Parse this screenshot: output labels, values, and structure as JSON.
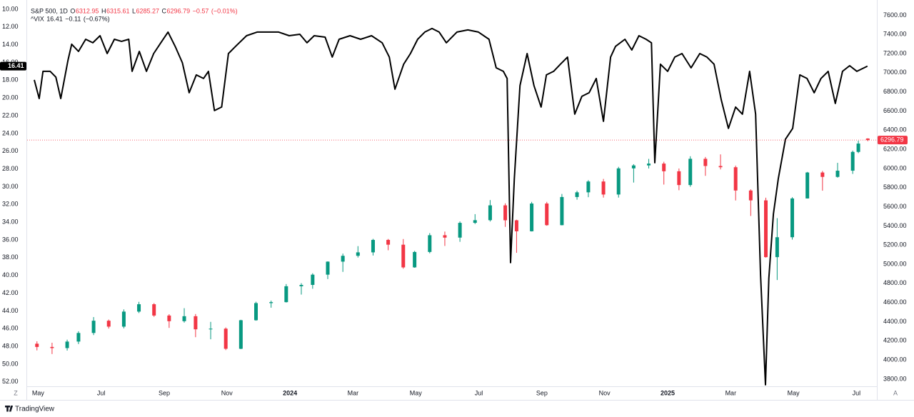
{
  "chart_data": {
    "type": "combo",
    "xlim": [
      2023.304,
      2025.554
    ],
    "xticks": [
      {
        "value": 2023.333,
        "label": "May"
      },
      {
        "value": 2023.5,
        "label": "Jul"
      },
      {
        "value": 2023.667,
        "label": "Sep"
      },
      {
        "value": 2023.833,
        "label": "Nov"
      },
      2024,
      {
        "value": 2024.167,
        "label": "Mar"
      },
      {
        "value": 2024.333,
        "label": "May"
      },
      {
        "value": 2024.5,
        "label": "Jul"
      },
      {
        "value": 2024.667,
        "label": "Sep"
      },
      {
        "value": 2024.833,
        "label": "Nov"
      },
      2025,
      {
        "value": 2025.167,
        "label": "Mar"
      },
      {
        "value": 2025.333,
        "label": "May"
      },
      {
        "value": 2025.5,
        "label": "Jul"
      }
    ],
    "ylim": [
      9.6,
      52.5
    ],
    "y_inverted": true,
    "yticks": [
      {
        "value": 10,
        "label": "10.00"
      },
      {
        "value": 12,
        "label": "12.00"
      },
      {
        "value": 14,
        "label": "14.00"
      },
      {
        "value": 16,
        "label": "16.00"
      },
      {
        "value": 18,
        "label": "18.00"
      },
      {
        "value": 20,
        "label": "20.00"
      },
      {
        "value": 22,
        "label": "22.00"
      },
      {
        "value": 24,
        "label": "24.00"
      },
      {
        "value": 26,
        "label": "26.00"
      },
      {
        "value": 28,
        "label": "28.00"
      },
      {
        "value": 30,
        "label": "30.00"
      },
      {
        "value": 32,
        "label": "32.00"
      },
      {
        "value": 34,
        "label": "34.00"
      },
      {
        "value": 36,
        "label": "36.00"
      },
      {
        "value": 38,
        "label": "38.00"
      },
      {
        "value": 40,
        "label": "40.00"
      },
      {
        "value": 42,
        "label": "42.00"
      },
      {
        "value": 44,
        "label": "44.00"
      },
      {
        "value": 46,
        "label": "46.00"
      },
      {
        "value": 48,
        "label": "48.00"
      },
      {
        "value": 50,
        "label": "50.00"
      },
      {
        "value": 52,
        "label": "52.00"
      }
    ],
    "y2lim": [
      3725,
      7700
    ],
    "y2ticks": [
      {
        "value": 3800,
        "label": "3800.00"
      },
      {
        "value": 4000,
        "label": "4000.00"
      },
      {
        "value": 4200,
        "label": "4200.00"
      },
      {
        "value": 4400,
        "label": "4400.00"
      },
      {
        "value": 4600,
        "label": "4600.00"
      },
      {
        "value": 4800,
        "label": "4800.00"
      },
      {
        "value": 5000,
        "label": "5000.00"
      },
      {
        "value": 5200,
        "label": "5200.00"
      },
      {
        "value": 5400,
        "label": "5400.00"
      },
      {
        "value": 5600,
        "label": "5600.00"
      },
      {
        "value": 5800,
        "label": "5800.00"
      },
      {
        "value": 6000,
        "label": "6000.00"
      },
      {
        "value": 6200,
        "label": "6200.00"
      },
      {
        "value": 6400,
        "label": "6400.00"
      },
      {
        "value": 6600,
        "label": "6600.00"
      },
      {
        "value": 6800,
        "label": "6800.00"
      },
      {
        "value": 7000,
        "label": "7000.00"
      },
      {
        "value": 7200,
        "label": "7200.00"
      },
      {
        "value": 7400,
        "label": "7400.00"
      },
      {
        "value": 7600,
        "label": "7600.00"
      }
    ],
    "grid": false,
    "series": [
      {
        "name": "S&P 500, 1D",
        "type": "candlestick",
        "axis": "y2",
        "up_color": "#089981",
        "down_color": "#f23645",
        "ohlc_labels": [
          "O",
          "H",
          "L",
          "C"
        ],
        "change": {
          "value": -0.57,
          "label": "−0.57"
        },
        "change_pct": {
          "value": -0.01,
          "label": "(−0.01%)"
        },
        "x": [
          2023.33,
          2023.37,
          2023.41,
          2023.44,
          2023.48,
          2023.52,
          2023.56,
          2023.6,
          2023.64,
          2023.68,
          2023.72,
          2023.75,
          2023.79,
          2023.83,
          2023.87,
          2023.91,
          2023.95,
          2023.99,
          2024.03,
          2024.06,
          2024.1,
          2024.14,
          2024.18,
          2024.22,
          2024.26,
          2024.3,
          2024.33,
          2024.37,
          2024.41,
          2024.45,
          2024.49,
          2024.53,
          2024.57,
          2024.6,
          2024.64,
          2024.68,
          2024.72,
          2024.76,
          2024.79,
          2024.83,
          2024.87,
          2024.91,
          2024.95,
          2024.99,
          2025.03,
          2025.06,
          2025.1,
          2025.14,
          2025.18,
          2025.22,
          2025.26,
          2025.29,
          2025.33,
          2025.37,
          2025.41,
          2025.45,
          2025.49,
          2025.505,
          2025.53
        ],
        "open": [
          4170,
          4136,
          4124,
          4192,
          4282,
          4410,
          4348,
          4505,
          4582,
          4464,
          4405,
          4457,
          4320,
          4327,
          4117,
          4415,
          4594,
          4604,
          4770,
          4784,
          4891,
          5027,
          5088,
          5124,
          5254,
          5204,
          4967,
          5128,
          5303,
          5278,
          5432,
          5460,
          5615,
          5459,
          5344,
          5634,
          5408,
          5702,
          5751,
          5864,
          5728,
          6001,
          6032,
          6051,
          5971,
          5827,
          6101,
          6026,
          6013,
          5770,
          5667,
          5074,
          5282,
          5687,
          5958,
          5912,
          5977,
          6173,
          6312.95
        ],
        "high": [
          4195,
          4180,
          4212,
          4300,
          4448,
          4422,
          4528,
          4607,
          4594,
          4478,
          4541,
          4480,
          4398,
          4340,
          4420,
          4608,
          4620,
          4793,
          4802,
          4906,
          5030,
          5111,
          5189,
          5265,
          5264,
          5263,
          5139,
          5325,
          5341,
          5447,
          5523,
          5670,
          5636,
          5465,
          5651,
          5651,
          5734,
          5767,
          5878,
          5891,
          6017,
          6045,
          6100,
          6070,
          6000,
          6128,
          6120,
          6147,
          6030,
          5782,
          5695,
          5481,
          5700,
          5964,
          5974,
          6059,
          6187,
          6290,
          6315.61
        ],
        "low": [
          4100,
          4062,
          4098,
          4166,
          4260,
          4328,
          4330,
          4490,
          4450,
          4335,
          4390,
          4238,
          4216,
          4103,
          4113,
          4410,
          4546,
          4600,
          4683,
          4744,
          4845,
          4920,
          5070,
          5091,
          5146,
          4953,
          4963,
          5114,
          5191,
          5234,
          5420,
          5446,
          5390,
          5119,
          5342,
          5402,
          5406,
          5674,
          5700,
          5696,
          5696,
          5853,
          6000,
          5832,
          5773,
          5809,
          5923,
          5990,
          5666,
          5504,
          5069,
          4835,
          5257,
          5686,
          5768,
          5904,
          5943,
          6160,
          6285.27
        ],
        "close": [
          4136,
          4124,
          4192,
          4282,
          4410,
          4348,
          4505,
          4582,
          4464,
          4405,
          4457,
          4320,
          4327,
          4117,
          4415,
          4594,
          4604,
          4770,
          4784,
          4891,
          5027,
          5088,
          5124,
          5254,
          5204,
          4967,
          5128,
          5303,
          5278,
          5432,
          5460,
          5615,
          5459,
          5344,
          5634,
          5408,
          5702,
          5751,
          5864,
          5728,
          6001,
          6032,
          6051,
          5971,
          5827,
          6101,
          6026,
          6013,
          5770,
          5667,
          5074,
          5282,
          5687,
          5958,
          5912,
          5977,
          6173,
          6260,
          6296.79
        ]
      },
      {
        "name": "^VIX",
        "type": "line",
        "axis": "y",
        "color": "#000000",
        "change": {
          "value": -0.11,
          "label": "−0.11"
        },
        "change_pct": {
          "value": -0.67,
          "label": "(−0.67%)"
        },
        "x": [
          2023.323,
          2023.336,
          2023.346,
          2023.365,
          2023.38,
          2023.393,
          2023.412,
          2023.422,
          2023.44,
          2023.459,
          2023.478,
          2023.497,
          2023.516,
          2023.535,
          2023.554,
          2023.573,
          2023.582,
          2023.601,
          2023.62,
          2023.639,
          2023.658,
          2023.677,
          2023.696,
          2023.715,
          2023.733,
          2023.752,
          2023.771,
          2023.784,
          2023.8,
          2023.819,
          2023.837,
          2023.856,
          2023.885,
          2023.913,
          2023.941,
          2023.97,
          2023.998,
          2024.026,
          2024.045,
          2024.064,
          2024.093,
          2024.112,
          2024.13,
          2024.159,
          2024.187,
          2024.216,
          2024.244,
          2024.263,
          2024.278,
          2024.301,
          2024.319,
          2024.338,
          2024.357,
          2024.376,
          2024.395,
          2024.414,
          2024.442,
          2024.471,
          2024.499,
          2024.527,
          2024.546,
          2024.565,
          2024.575,
          2024.584,
          2024.594,
          2024.609,
          2024.628,
          2024.646,
          2024.665,
          2024.679,
          2024.698,
          2024.716,
          2024.735,
          2024.754,
          2024.773,
          2024.792,
          2024.811,
          2024.83,
          2024.849,
          2024.862,
          2024.887,
          2024.905,
          2024.924,
          2024.943,
          2024.957,
          2024.966,
          2024.981,
          2025.0,
          2025.019,
          2025.038,
          2025.062,
          2025.085,
          2025.104,
          2025.123,
          2025.142,
          2025.161,
          2025.18,
          2025.198,
          2025.217,
          2025.233,
          2025.246,
          2025.259,
          2025.268,
          2025.28,
          2025.293,
          2025.312,
          2025.331,
          2025.35,
          2025.369,
          2025.388,
          2025.406,
          2025.425,
          2025.444,
          2025.463,
          2025.482,
          2025.501,
          2025.52,
          2025.529
        ],
        "values": [
          17.96,
          20.06,
          17.0,
          17.0,
          17.64,
          20.06,
          15.79,
          13.94,
          14.75,
          13.38,
          13.78,
          12.98,
          14.99,
          13.38,
          13.62,
          13.38,
          17.0,
          14.75,
          17.0,
          14.99,
          13.78,
          12.57,
          14.18,
          16.03,
          19.41,
          17.4,
          17.8,
          17.0,
          21.42,
          21.02,
          14.99,
          14.18,
          12.98,
          12.57,
          12.57,
          12.57,
          12.98,
          12.82,
          13.78,
          12.98,
          13.14,
          15.39,
          13.38,
          12.98,
          13.38,
          12.98,
          13.78,
          15.39,
          19.01,
          16.19,
          14.99,
          13.38,
          12.57,
          12.17,
          12.57,
          13.78,
          12.57,
          12.33,
          12.57,
          13.38,
          16.6,
          17.0,
          17.8,
          38.56,
          29.07,
          18.61,
          14.99,
          18.61,
          21.02,
          17.4,
          17.0,
          16.19,
          15.39,
          21.83,
          19.81,
          19.41,
          17.8,
          22.63,
          15.39,
          14.18,
          13.38,
          14.59,
          12.98,
          13.38,
          13.78,
          27.3,
          16.19,
          17.0,
          15.39,
          14.99,
          16.6,
          14.99,
          15.39,
          16.19,
          20.22,
          23.43,
          21.02,
          21.83,
          17.0,
          21.83,
          39.93,
          52.33,
          40.33,
          33.09,
          29.07,
          24.64,
          23.43,
          17.4,
          17.8,
          19.41,
          17.8,
          17.0,
          20.62,
          17.0,
          16.36,
          17.0,
          16.6,
          16.41
        ]
      }
    ]
  },
  "ui": {
    "brand": "TradingView",
    "left_button": "Z",
    "right_button": "A"
  }
}
